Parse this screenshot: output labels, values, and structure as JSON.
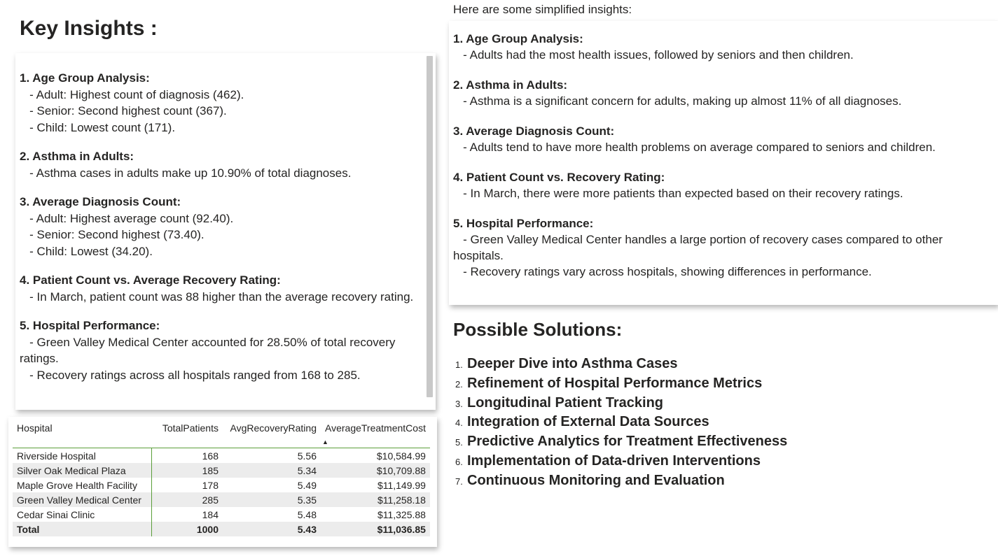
{
  "page_title": "Key Insights :",
  "insights": [
    {
      "heading": "1. Age Group Analysis:",
      "lines": [
        "   - Adult: Highest count of diagnosis (462).",
        "   - Senior: Second highest count (367).",
        "   - Child: Lowest count (171)."
      ]
    },
    {
      "heading": "2. Asthma in Adults:",
      "lines": [
        "   - Asthma cases in adults make up 10.90% of total diagnoses."
      ]
    },
    {
      "heading": "3. Average Diagnosis Count:",
      "lines": [
        "   - Adult: Highest average count (92.40).",
        "   - Senior: Second highest (73.40).",
        "   - Child: Lowest (34.20)."
      ]
    },
    {
      "heading": "4. Patient Count vs. Average Recovery Rating:",
      "lines": [
        "   - In March, patient count was 88 higher than the average recovery rating."
      ]
    },
    {
      "heading": "5. Hospital Performance:",
      "lines": [
        "   - Green Valley Medical Center accounted for 28.50% of total recovery ratings.",
        "   - Recovery ratings across all hospitals ranged from 168 to 285."
      ]
    }
  ],
  "table": {
    "headers": [
      "Hospital",
      "TotalPatients",
      "AvgRecoveryRating",
      "AverageTreatmentCost"
    ],
    "rows": [
      [
        "Riverside Hospital",
        "168",
        "5.56",
        "$10,584.99"
      ],
      [
        "Silver Oak Medical Plaza",
        "185",
        "5.34",
        "$10,709.88"
      ],
      [
        "Maple Grove Health Facility",
        "178",
        "5.49",
        "$11,149.99"
      ],
      [
        "Green Valley Medical Center",
        "285",
        "5.35",
        "$11,258.18"
      ],
      [
        "Cedar Sinai Clinic",
        "184",
        "5.48",
        "$11,325.88"
      ]
    ],
    "total": [
      "Total",
      "1000",
      "5.43",
      "$11,036.85"
    ],
    "sort_indicator": "▲"
  },
  "simplified": {
    "intro": "Here are some simplified insights:",
    "sections": [
      {
        "heading": "1. Age Group Analysis:",
        "lines": [
          "   - Adults had the most health issues, followed by seniors and then children."
        ]
      },
      {
        "heading": "2. Asthma in Adults:",
        "lines": [
          "   - Asthma is a significant concern for adults, making up almost 11% of all diagnoses."
        ]
      },
      {
        "heading": "3. Average Diagnosis Count:",
        "lines": [
          "   - Adults tend to have more health problems on average compared to seniors and children."
        ]
      },
      {
        "heading": "4. Patient Count vs. Recovery Rating:",
        "lines": [
          "   - In March, there were more patients than expected based on their recovery ratings."
        ]
      },
      {
        "heading": "5. Hospital Performance:",
        "lines": [
          "   - Green Valley Medical Center handles a large portion of recovery cases compared to other hospitals.",
          "   - Recovery ratings vary across hospitals, showing differences in performance."
        ]
      }
    ]
  },
  "solutions": {
    "title": "Possible Solutions:",
    "items": [
      {
        "num": "1.",
        "text": "Deeper Dive into Asthma Cases"
      },
      {
        "num": "2.",
        "text": "Refinement of Hospital Performance Metrics"
      },
      {
        "num": "3.",
        "text": "Longitudinal Patient Tracking"
      },
      {
        "num": "4.",
        "text": "Integration of External Data Sources"
      },
      {
        "num": "5.",
        "text": "Predictive Analytics for Treatment Effectiveness"
      },
      {
        "num": "6.",
        "text": "Implementation of Data-driven Interventions"
      },
      {
        "num": "7.",
        "text": "Continuous Monitoring and Evaluation"
      }
    ]
  }
}
